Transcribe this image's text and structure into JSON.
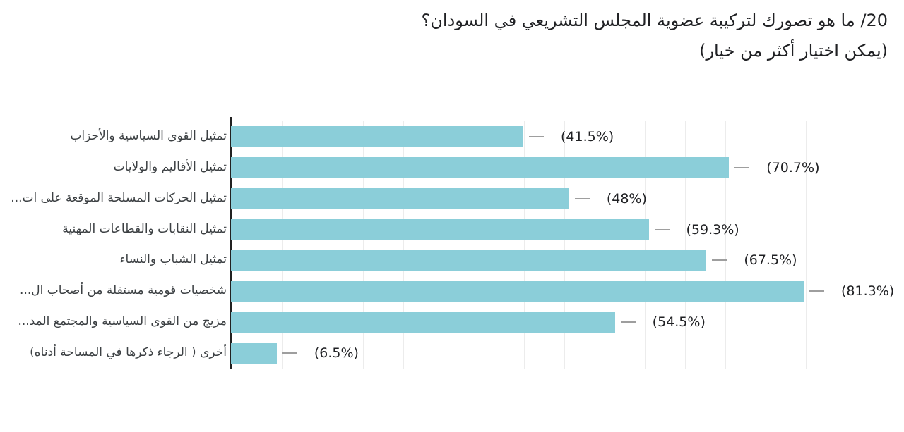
{
  "question": {
    "title": "20/ ما هو تصورك لتركيبة عضوية المجلس التشريعي في السودان؟",
    "subtitle": "(يمكن اختيار أكثر من خيار)"
  },
  "chart_data": {
    "type": "bar",
    "orientation": "horizontal",
    "title": "20/ ما هو تصورك لتركيبة عضوية المجلس التشريعي في السودان؟",
    "subtitle": "(يمكن اختيار أكثر من خيار)",
    "categories": [
      "تمثيل القوى السياسية والأحزاب",
      "تمثيل الأقاليم والولايات",
      "تمثيل الحركات المسلحة الموقعة على ات...",
      "تمثيل النقابات والقطاعات المهنية",
      "تمثيل الشباب والنساء",
      "شخصيات قومية مستقلة من أصحاب ال...",
      "مزيج من القوى السياسية والمجتمع المد...",
      "أخرى ( الرجاء ذكرها في المساحة أدناه)"
    ],
    "values": [
      41.5,
      70.7,
      48,
      59.3,
      67.5,
      81.3,
      54.5,
      6.5
    ],
    "value_labels": [
      "(41.5%)",
      "(70.7%)",
      "(48%)",
      "(59.3%)",
      "(67.5%)",
      "(81.3%)",
      "(54.5%)",
      "(6.5%)"
    ],
    "unit": "%",
    "xlim": [
      0,
      81.7
    ],
    "grid": "vertical",
    "legend": "none",
    "text_direction": "rtl",
    "bar_color": "#8bced9",
    "axis_color": "#212121",
    "gridline_color": "#ececec",
    "whisker_color": "#9e9e9e",
    "label_color": "#3c4043",
    "value_label_color": "#202124"
  }
}
